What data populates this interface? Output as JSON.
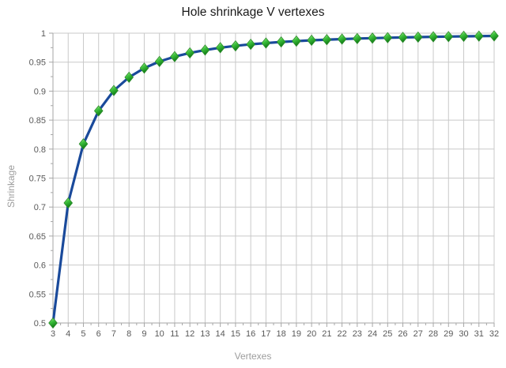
{
  "chart_data": {
    "type": "line",
    "title": "Hole shrinkage V vertexes",
    "xlabel": "Vertexes",
    "ylabel": "Shrinkage",
    "series": [
      {
        "name": "Shrinkage",
        "x": [
          3,
          4,
          5,
          6,
          7,
          8,
          9,
          10,
          11,
          12,
          13,
          14,
          15,
          16,
          17,
          18,
          19,
          20,
          21,
          22,
          23,
          24,
          25,
          26,
          27,
          28,
          29,
          30,
          31,
          32
        ],
        "values": [
          0.5,
          0.7071,
          0.809,
          0.866,
          0.901,
          0.9239,
          0.9397,
          0.9511,
          0.9595,
          0.9659,
          0.9709,
          0.9749,
          0.9781,
          0.9808,
          0.9829,
          0.9848,
          0.9863,
          0.9877,
          0.9888,
          0.9898,
          0.9907,
          0.9914,
          0.9921,
          0.9927,
          0.9932,
          0.9937,
          0.9941,
          0.9945,
          0.9949,
          0.9952
        ]
      }
    ],
    "xlim": [
      3,
      32
    ],
    "ylim": [
      0.5,
      1.0
    ],
    "x_ticks": [
      "3",
      "4",
      "5",
      "6",
      "7",
      "8",
      "9",
      "10",
      "11",
      "12",
      "13",
      "14",
      "15",
      "16",
      "17",
      "18",
      "19",
      "20",
      "21",
      "22",
      "23",
      "24",
      "25",
      "26",
      "27",
      "28",
      "29",
      "30",
      "31",
      "32"
    ],
    "y_ticks": [
      {
        "value": 1.0,
        "label": "1"
      },
      {
        "value": 0.95,
        "label": "0.95"
      },
      {
        "value": 0.9,
        "label": "0.9"
      },
      {
        "value": 0.85,
        "label": "0.85"
      },
      {
        "value": 0.8,
        "label": "0.8"
      },
      {
        "value": 0.75,
        "label": "0.75"
      },
      {
        "value": 0.7,
        "label": "0.7"
      },
      {
        "value": 0.65,
        "label": "0.65"
      },
      {
        "value": 0.6,
        "label": "0.6"
      },
      {
        "value": 0.55,
        "label": "0.55"
      },
      {
        "value": 0.5,
        "label": "0.5"
      }
    ],
    "grid": true,
    "legend_position": "none",
    "marker_shape": "diamond-3d",
    "colors": {
      "line": "#1a4a9b",
      "marker_light": "#c9f5a2",
      "marker_mid": "#3ec23e",
      "marker_dark": "#0e7a12",
      "marker_edge": "#2e8b2e",
      "grid": "#c9c9c9",
      "axis": "#a6a6a6",
      "tick_label": "#595959",
      "axis_title": "#9c9c9c",
      "title": "#1a1a1a"
    }
  }
}
